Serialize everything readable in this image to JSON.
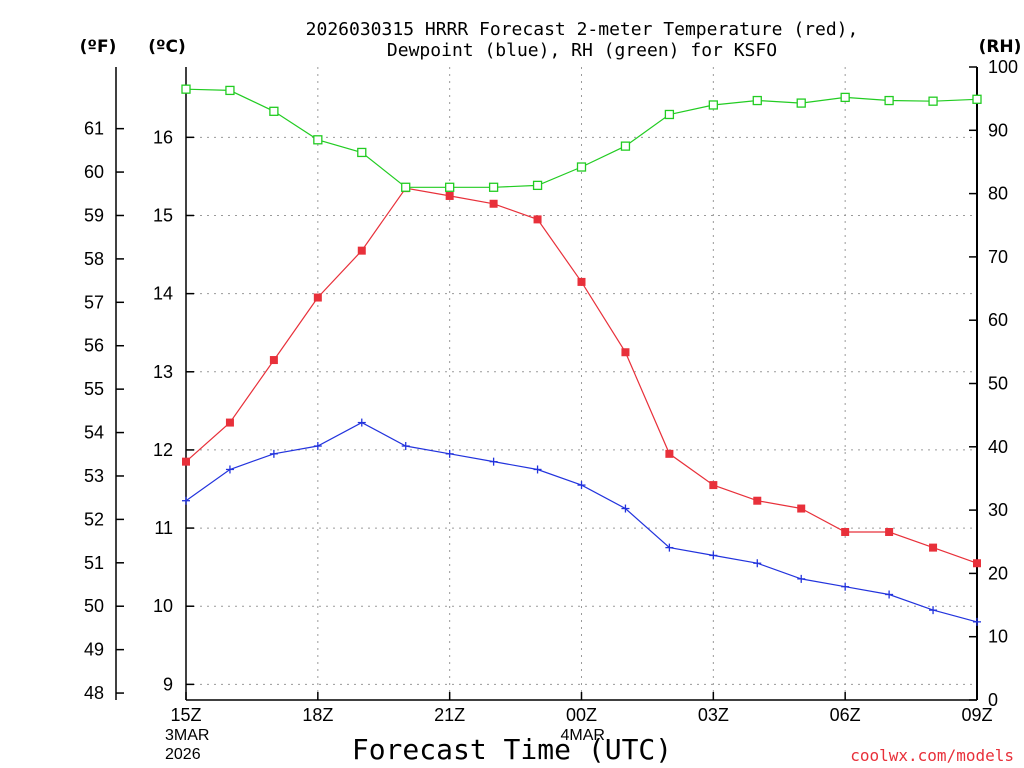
{
  "chart_data": {
    "type": "line",
    "title": [
      "2026030315 HRRR Forecast 2-meter Temperature (red),",
      "Dewpoint (blue), RH (green) for KSFO"
    ],
    "xlabel": "Forecast Time (UTC)",
    "left_axis_units": [
      "(ºF)",
      "(ºC)"
    ],
    "right_axis_units": "(RH)",
    "x_ticks": [
      {
        "label": "15Z",
        "sub": [
          "3MAR",
          "2026"
        ],
        "hour": 0
      },
      {
        "label": "18Z",
        "sub": [],
        "hour": 3
      },
      {
        "label": "21Z",
        "sub": [],
        "hour": 6
      },
      {
        "label": "00Z",
        "sub": [
          "4MAR"
        ],
        "hour": 9
      },
      {
        "label": "03Z",
        "sub": [],
        "hour": 12
      },
      {
        "label": "06Z",
        "sub": [],
        "hour": 15
      },
      {
        "label": "09Z",
        "sub": [],
        "hour": 18
      }
    ],
    "x_range_hours": [
      0,
      18
    ],
    "celsius_range": [
      8.8,
      16.9
    ],
    "celsius_ticks": [
      9,
      10,
      11,
      12,
      13,
      14,
      15,
      16
    ],
    "fahrenheit_ticks": [
      48,
      49,
      50,
      51,
      52,
      53,
      54,
      55,
      56,
      57,
      58,
      59,
      60,
      61
    ],
    "rh_range": [
      0,
      100
    ],
    "rh_ticks": [
      0,
      10,
      20,
      30,
      40,
      50,
      60,
      70,
      80,
      90,
      100
    ],
    "grid": true,
    "series": [
      {
        "name": "Temperature",
        "color": "#e8303a",
        "marker": "filled-square",
        "axis": "celsius",
        "values": [
          11.85,
          12.35,
          13.15,
          13.95,
          14.55,
          15.35,
          15.25,
          15.15,
          14.95,
          14.15,
          13.25,
          11.95,
          11.55,
          11.35,
          11.25,
          10.95,
          10.95,
          10.75,
          10.55
        ]
      },
      {
        "name": "Dewpoint",
        "color": "#2233dd",
        "marker": "plus",
        "axis": "celsius",
        "values": [
          11.35,
          11.75,
          11.95,
          12.05,
          12.35,
          12.05,
          11.95,
          11.85,
          11.75,
          11.55,
          11.25,
          10.75,
          10.65,
          10.55,
          10.35,
          10.25,
          10.15,
          9.95,
          9.8
        ]
      },
      {
        "name": "RH",
        "color": "#22cc22",
        "marker": "open-square",
        "axis": "rh",
        "values": [
          96.5,
          96.3,
          93.0,
          88.5,
          86.5,
          81.0,
          81.0,
          81.0,
          81.3,
          84.2,
          87.5,
          92.5,
          94.0,
          94.7,
          94.3,
          95.2,
          94.7,
          94.6,
          94.9
        ]
      }
    ]
  },
  "credit": "coolwx.com/models"
}
